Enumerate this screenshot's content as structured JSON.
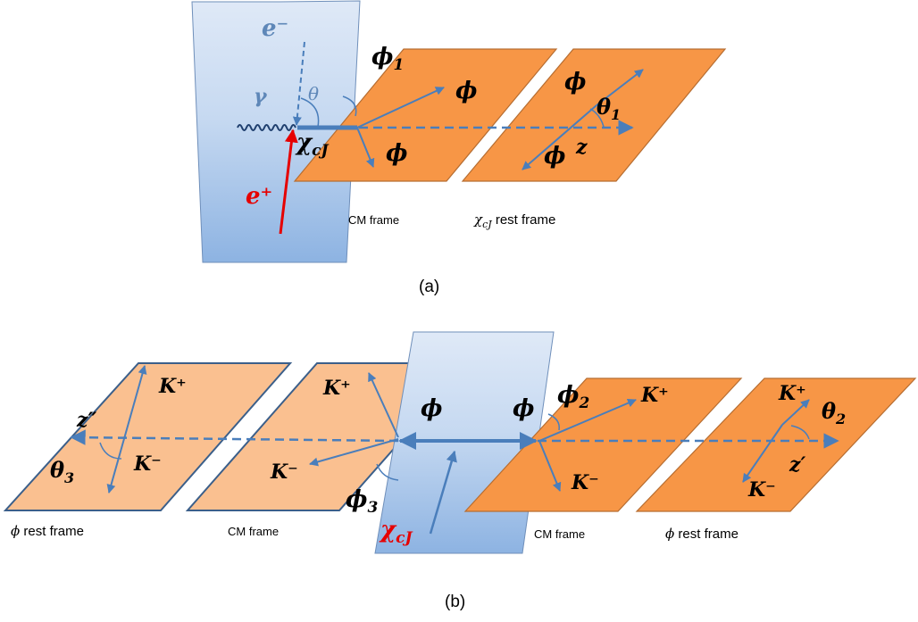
{
  "panel_a": {
    "caption": "(a)",
    "e_minus": "e⁻",
    "e_plus": "e⁺",
    "gamma": "γ",
    "theta": "θ",
    "chi": "χ",
    "chi_sub": "cJ",
    "phi1_name": "ϕ",
    "phi1_sub": "1",
    "phi_up": "ϕ",
    "phi_down": "ϕ",
    "phi_rest_up": "ϕ",
    "phi_rest_down": "ϕ",
    "theta1": "θ",
    "theta1_sub": "1",
    "z": "z",
    "cm_frame": "CM frame",
    "chi_rest_sym": "χ",
    "chi_rest_sub": "cJ",
    "chi_rest_text": " rest frame"
  },
  "panel_b": {
    "caption": "(b)",
    "phi2_name": "ϕ",
    "phi2_sub": "2",
    "phi3_name": "ϕ",
    "phi3_sub": "3",
    "phi_left": "ϕ",
    "phi_right": "ϕ",
    "chi": "χ",
    "chi_sub": "cJ",
    "kplus_cm_right": "K⁺",
    "kminus_cm_right": "K⁻",
    "kplus_rest_right": "K⁺",
    "kminus_rest_right": "K⁻",
    "theta2": "θ",
    "theta2_sub": "2",
    "zprime": "z′",
    "kplus_cm_left": "K⁺",
    "kminus_cm_left": "K⁻",
    "kplus_rest_left": "K⁺",
    "kminus_rest_left": "K⁻",
    "theta3": "θ",
    "theta3_sub": "3",
    "zpp": "z″",
    "phi_rest_left_sym": "ϕ",
    "phi_rest_left_text": " rest frame",
    "cm_frame_left": "CM frame",
    "cm_frame_right": "CM frame",
    "phi_rest_right_sym": "ϕ",
    "phi_rest_right_text": " rest frame"
  },
  "colors": {
    "arrow_blue": "#4a7ebb",
    "orange_plane": "#f79646",
    "peach_plane": "#fac090",
    "plane_border_orange": "#b66d31",
    "plane_border_dark": "#3b5f8a",
    "blue_plane_top": "#c6d9f1",
    "blue_plane_bottom": "#8db3e2",
    "red": "#e60000",
    "label_blue": "#5e87b8"
  }
}
